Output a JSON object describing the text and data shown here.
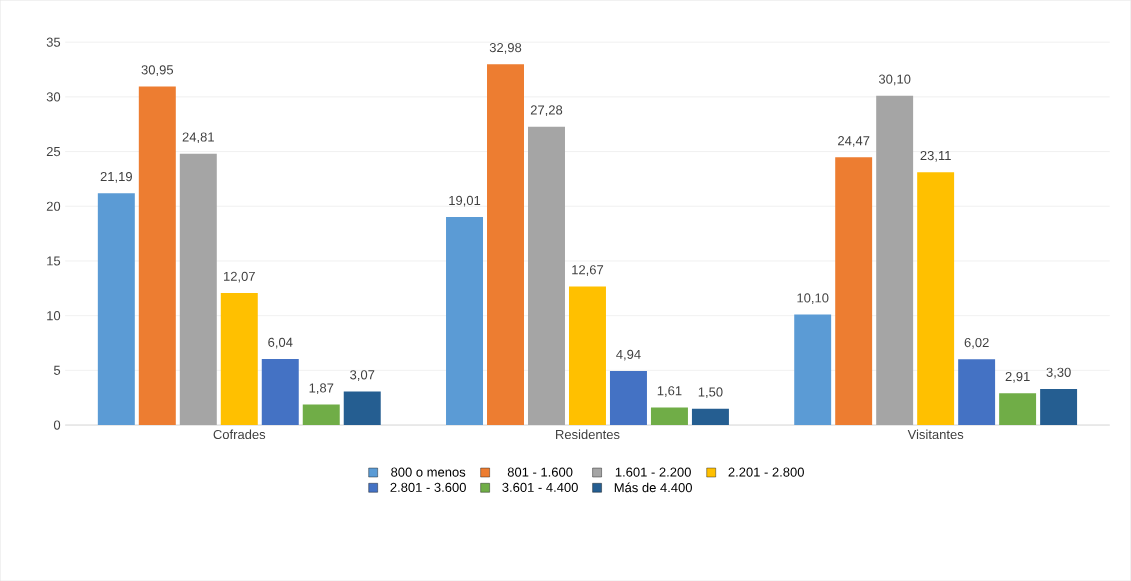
{
  "chart_data": {
    "type": "bar",
    "categories": [
      "Cofrades",
      "Residentes",
      "Visitantes"
    ],
    "series": [
      {
        "name": "800 o menos",
        "color": "#5b9bd5",
        "values": [
          21.19,
          19.01,
          10.1
        ],
        "value_labels": [
          "21,19",
          "19,01",
          "10,10"
        ]
      },
      {
        "name": "801 - 1.600",
        "color": "#ed7d31",
        "values": [
          30.95,
          32.98,
          24.47
        ],
        "value_labels": [
          "30,95",
          "32,98",
          "24,47"
        ]
      },
      {
        "name": "1.601 - 2.200",
        "color": "#a5a5a5",
        "values": [
          24.81,
          27.28,
          30.1
        ],
        "value_labels": [
          "24,81",
          "27,28",
          "30,10"
        ]
      },
      {
        "name": "2.201 - 2.800",
        "color": "#ffc000",
        "values": [
          12.07,
          12.67,
          23.11
        ],
        "value_labels": [
          "12,07",
          "12,67",
          "23,11"
        ]
      },
      {
        "name": "2.801 - 3.600",
        "color": "#4472c4",
        "values": [
          6.04,
          4.94,
          6.02
        ],
        "value_labels": [
          "6,04",
          "4,94",
          "6,02"
        ]
      },
      {
        "name": "3.601 - 4.400",
        "color": "#70ad47",
        "values": [
          1.87,
          1.61,
          2.91
        ],
        "value_labels": [
          "1,87",
          "1,61",
          "2,91"
        ]
      },
      {
        "name": "Más de 4.400",
        "color": "#255e91",
        "values": [
          3.07,
          1.5,
          3.3
        ],
        "value_labels": [
          "3,07",
          "1,50",
          "3,30"
        ]
      }
    ],
    "ylim": [
      0,
      35
    ],
    "yticks": [
      0,
      5,
      10,
      15,
      20,
      25,
      30,
      35
    ],
    "grid": "y",
    "legend": "bottom"
  }
}
